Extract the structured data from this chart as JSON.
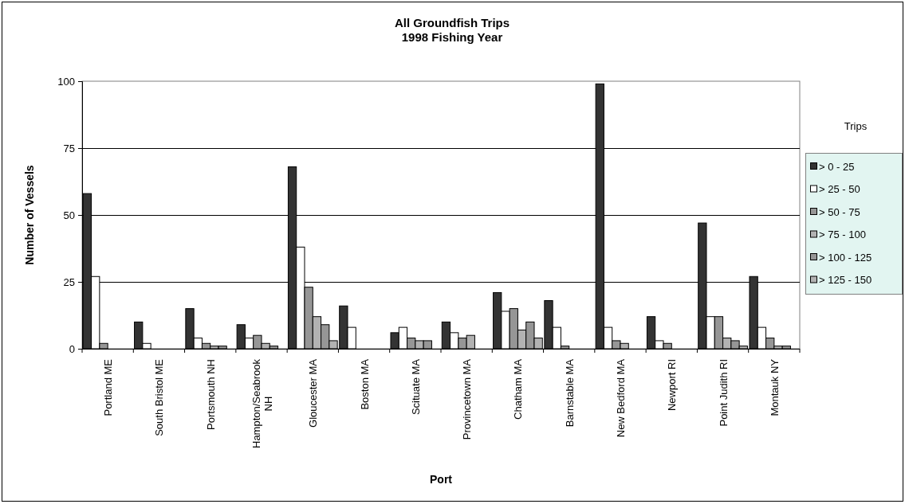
{
  "chart_data": {
    "type": "bar",
    "title": "All Groundfish Trips",
    "subtitle": "1998 Fishing Year",
    "xlabel": "Port",
    "ylabel": "Number of Vessels",
    "legend_title": "Trips",
    "categories": [
      "Portland ME",
      "South Bristol ME",
      "Portsmouth NH",
      "Hampton/Seabrook NH",
      "Gloucester MA",
      "Boston MA",
      "Scituate MA",
      "Provincetown MA",
      "Chatham MA",
      "Barnstable MA",
      "New Bedford MA",
      "Newport RI",
      "Point Judith RI",
      "Montauk NY"
    ],
    "series": [
      {
        "name": "> 0 - 25",
        "color": "#333333",
        "values": [
          58,
          10,
          15,
          9,
          68,
          16,
          6,
          10,
          21,
          18,
          99,
          12,
          47,
          27
        ]
      },
      {
        "name": "> 25 - 50",
        "color": "#ffffff",
        "values": [
          27,
          2,
          4,
          4,
          38,
          8,
          8,
          6,
          14,
          8,
          8,
          3,
          12,
          8
        ]
      },
      {
        "name": "> 50 - 75",
        "color": "#969696",
        "values": [
          2,
          null,
          2,
          5,
          23,
          null,
          4,
          4,
          15,
          1,
          3,
          2,
          12,
          4
        ]
      },
      {
        "name": "> 75 - 100",
        "color": "#b2b2b2",
        "values": [
          null,
          null,
          1,
          2,
          12,
          null,
          3,
          5,
          7,
          null,
          2,
          null,
          4,
          1
        ]
      },
      {
        "name": "> 100 - 125",
        "color": "#969696",
        "values": [
          null,
          null,
          1,
          1,
          9,
          null,
          3,
          null,
          10,
          null,
          null,
          null,
          3,
          1
        ]
      },
      {
        "name": "> 125 - 150",
        "color": "#b2b2b2",
        "values": [
          null,
          null,
          null,
          null,
          3,
          null,
          null,
          null,
          4,
          null,
          null,
          null,
          1,
          null
        ]
      }
    ],
    "ylim": [
      0,
      100
    ],
    "yticks": [
      0,
      25,
      50,
      75,
      100
    ],
    "grid": "y",
    "legend": "right"
  }
}
